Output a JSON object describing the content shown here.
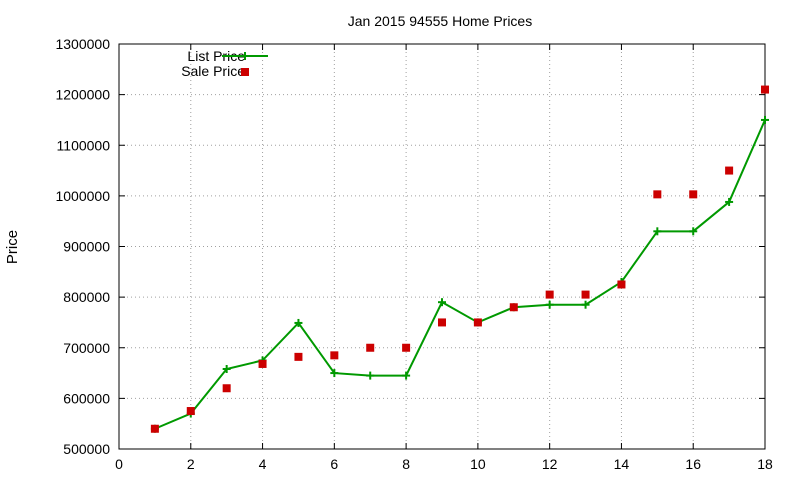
{
  "chart_data": {
    "type": "line",
    "title": "Jan 2015 94555 Home Prices",
    "xlabel": "",
    "ylabel": "Price",
    "xlim": [
      0,
      18
    ],
    "ylim": [
      500000,
      1300000
    ],
    "x_ticks": [
      0,
      2,
      4,
      6,
      8,
      10,
      12,
      14,
      16,
      18
    ],
    "x_tick_labels": [
      "0",
      "2",
      "4",
      "6",
      "8",
      "10",
      "12",
      "14",
      "16",
      "18"
    ],
    "y_ticks": [
      500000,
      600000,
      700000,
      800000,
      900000,
      1000000,
      1100000,
      1200000,
      1300000
    ],
    "y_tick_labels": [
      "500000",
      "600000",
      "700000",
      "800000",
      "900000",
      "1000000",
      "1100000",
      "1200000",
      "1300000"
    ],
    "grid": true,
    "legend_position": "top-left",
    "series": [
      {
        "name": "List Price",
        "style": "line+cross-markers",
        "color": "#009900",
        "x": [
          1,
          2,
          3,
          4,
          5,
          6,
          7,
          8,
          9,
          10,
          11,
          12,
          13,
          14,
          15,
          16,
          17,
          18
        ],
        "y": [
          540000,
          570000,
          658000,
          675000,
          749000,
          650000,
          645000,
          645000,
          790000,
          750000,
          780000,
          785000,
          785000,
          830000,
          930000,
          930000,
          988000,
          1150000
        ]
      },
      {
        "name": "Sale Price",
        "style": "square-markers",
        "color": "#cc0000",
        "x": [
          1,
          2,
          3,
          4,
          5,
          6,
          7,
          8,
          9,
          10,
          11,
          12,
          13,
          14,
          15,
          16,
          17,
          18
        ],
        "y": [
          540000,
          575000,
          620000,
          668000,
          682000,
          685000,
          700000,
          700000,
          750000,
          750000,
          780000,
          805000,
          805000,
          825000,
          1003000,
          1003000,
          1050000,
          1210000
        ]
      }
    ]
  }
}
